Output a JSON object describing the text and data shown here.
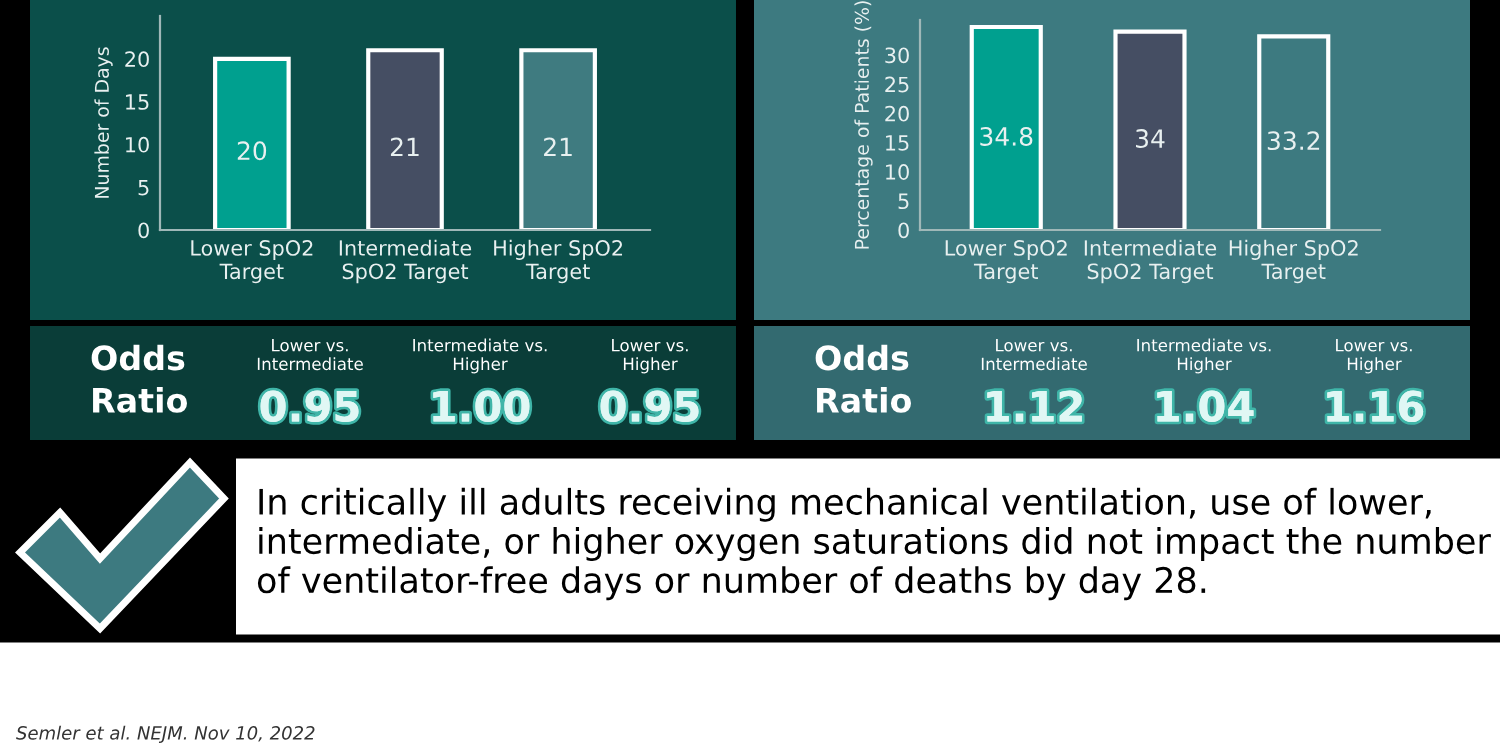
{
  "chart_data": [
    {
      "type": "bar",
      "ylabel": "Number of Days",
      "categories": [
        "Lower SpO2\nTarget",
        "Intermediate\nSpO2 Target",
        "Higher SpO2\nTarget"
      ],
      "values": [
        20,
        21,
        21
      ],
      "colors": [
        "#00a08f",
        "#454e63",
        "#3f7b80"
      ],
      "ylim": [
        0,
        25
      ],
      "yticks": [
        0,
        5,
        10,
        15,
        20
      ],
      "data_labels": true,
      "grid": false,
      "legend": false,
      "annotations": [
        "Odds\nRatio",
        "Lower vs.\nIntermediate",
        "0.95",
        "Intermediate vs.\nHigher",
        "1.00",
        "Lower vs.\nHigher",
        "0.95"
      ]
    },
    {
      "type": "bar",
      "ylabel": "Percentage of Patients (%)",
      "categories": [
        "Lower SpO2\nTarget",
        "Intermediate\nSpO2 Target",
        "Higher SpO2\nTarget"
      ],
      "values": [
        34.8,
        34,
        33.2
      ],
      "colors": [
        "#00a08f",
        "#454e63",
        "#3d7a80"
      ],
      "ylim": [
        0,
        36
      ],
      "yticks": [
        0,
        5,
        10,
        15,
        20,
        25,
        30
      ],
      "data_labels": true,
      "grid": false,
      "legend": false,
      "annotations": [
        "Odds\nRatio",
        "Lower vs.\nIntermediate",
        "1.12",
        "Intermediate vs.\nHigher",
        "1.04",
        "Lower vs.\nHigher",
        "1.16"
      ]
    },
    {
      "type": "other",
      "annotations": [
        "In critically ill adults receiving mechanical ventilation, use of lower, intermediate, or higher oxygen saturations did not impact the number of ventilator-free days or number of deaths by day 28.",
        "Semler et al. NEJM. Nov 10, 2022"
      ]
    }
  ]
}
